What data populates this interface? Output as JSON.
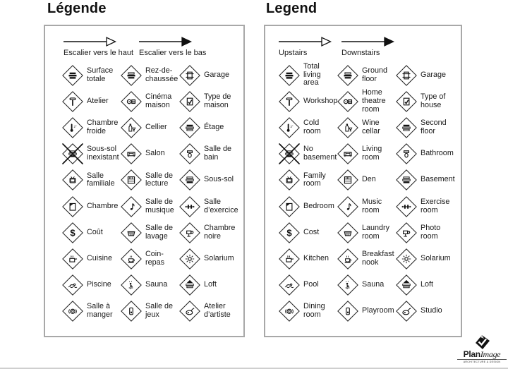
{
  "panels": [
    {
      "id": "legend-fr",
      "title": "Légende",
      "arrows": [
        {
          "label": "Escalier vers le haut",
          "style": "open"
        },
        {
          "label": "Escalier vers le bas",
          "style": "filled"
        }
      ],
      "items": [
        {
          "label": "Surface totale",
          "icon": "total-area-icon"
        },
        {
          "label": "Rez-de-chaussée",
          "icon": "ground-floor-icon"
        },
        {
          "label": "Garage",
          "icon": "garage-icon"
        },
        {
          "label": "Atelier",
          "icon": "hammer-icon"
        },
        {
          "label": "Cinéma maison",
          "icon": "projector-icon"
        },
        {
          "label": "Type de maison",
          "icon": "house-check-icon"
        },
        {
          "label": "Chambre froide",
          "icon": "thermometer-icon"
        },
        {
          "label": "Cellier",
          "icon": "wine-icon"
        },
        {
          "label": "Étage",
          "icon": "second-floor-icon"
        },
        {
          "label": "Sous-sol inexistant",
          "icon": "no-basement-icon"
        },
        {
          "label": "Salon",
          "icon": "sofa-icon"
        },
        {
          "label": "Salle de bain",
          "icon": "toilet-icon"
        },
        {
          "label": "Salle familiale",
          "icon": "tv-icon"
        },
        {
          "label": "Salle de lecture",
          "icon": "bookshelf-icon"
        },
        {
          "label": "Sous-sol",
          "icon": "basement-icon"
        },
        {
          "label": "Chambre",
          "icon": "bed-icon"
        },
        {
          "label": "Salle de musique",
          "icon": "music-note-icon"
        },
        {
          "label": "Salle d’exercice",
          "icon": "dumbbell-icon"
        },
        {
          "label": "Coût",
          "icon": "dollar-icon"
        },
        {
          "label": "Salle de lavage",
          "icon": "laundry-basket-icon"
        },
        {
          "label": "Chambre noire",
          "icon": "camera-icon"
        },
        {
          "label": "Cuisine",
          "icon": "cooking-pot-icon"
        },
        {
          "label": "Coin-repas",
          "icon": "coffee-cup-icon"
        },
        {
          "label": "Solarium",
          "icon": "sun-icon"
        },
        {
          "label": "Piscine",
          "icon": "swimmer-icon"
        },
        {
          "label": "Sauna",
          "icon": "sauna-person-icon"
        },
        {
          "label": "Loft",
          "icon": "loft-icon"
        },
        {
          "label": "Salle à manger",
          "icon": "dining-plate-icon"
        },
        {
          "label": "Salle de jeux",
          "icon": "game-piece-icon"
        },
        {
          "label": "Atelier d’artiste",
          "icon": "palette-icon"
        }
      ]
    },
    {
      "id": "legend-en",
      "title": "Legend",
      "arrows": [
        {
          "label": "Upstairs",
          "style": "open"
        },
        {
          "label": "Downstairs",
          "style": "filled"
        }
      ],
      "items": [
        {
          "label": "Total living area",
          "icon": "total-area-icon"
        },
        {
          "label": "Ground floor",
          "icon": "ground-floor-icon"
        },
        {
          "label": "Garage",
          "icon": "garage-icon"
        },
        {
          "label": "Workshop",
          "icon": "hammer-icon"
        },
        {
          "label": "Home theatre room",
          "icon": "projector-icon"
        },
        {
          "label": "Type of house",
          "icon": "house-check-icon"
        },
        {
          "label": "Cold room",
          "icon": "thermometer-icon"
        },
        {
          "label": "Wine cellar",
          "icon": "wine-icon"
        },
        {
          "label": "Second floor",
          "icon": "second-floor-icon"
        },
        {
          "label": "No basement",
          "icon": "no-basement-icon"
        },
        {
          "label": "Living room",
          "icon": "sofa-icon"
        },
        {
          "label": "Bathroom",
          "icon": "toilet-icon"
        },
        {
          "label": "Family room",
          "icon": "tv-icon"
        },
        {
          "label": "Den",
          "icon": "bookshelf-icon"
        },
        {
          "label": "Basement",
          "icon": "basement-icon"
        },
        {
          "label": "Bedroom",
          "icon": "bed-icon"
        },
        {
          "label": "Music room",
          "icon": "music-note-icon"
        },
        {
          "label": "Exercise room",
          "icon": "dumbbell-icon"
        },
        {
          "label": "Cost",
          "icon": "dollar-icon"
        },
        {
          "label": "Laundry room",
          "icon": "laundry-basket-icon"
        },
        {
          "label": "Photo room",
          "icon": "camera-icon"
        },
        {
          "label": "Kitchen",
          "icon": "cooking-pot-icon"
        },
        {
          "label": "Breakfast nook",
          "icon": "coffee-cup-icon"
        },
        {
          "label": "Solarium",
          "icon": "sun-icon"
        },
        {
          "label": "Pool",
          "icon": "swimmer-icon"
        },
        {
          "label": "Sauna",
          "icon": "sauna-person-icon"
        },
        {
          "label": "Loft",
          "icon": "loft-icon"
        },
        {
          "label": "Dining room",
          "icon": "dining-plate-icon"
        },
        {
          "label": "Playroom",
          "icon": "game-piece-icon"
        },
        {
          "label": "Studio",
          "icon": "palette-icon"
        }
      ]
    }
  ],
  "logo": {
    "brand_plan": "Plan",
    "brand_image": "Image",
    "tagline": "ARCHITECTURE & DESIGN"
  },
  "colors": {
    "ink": "#1a1a1a",
    "panel_border": "#a8a8a8"
  }
}
